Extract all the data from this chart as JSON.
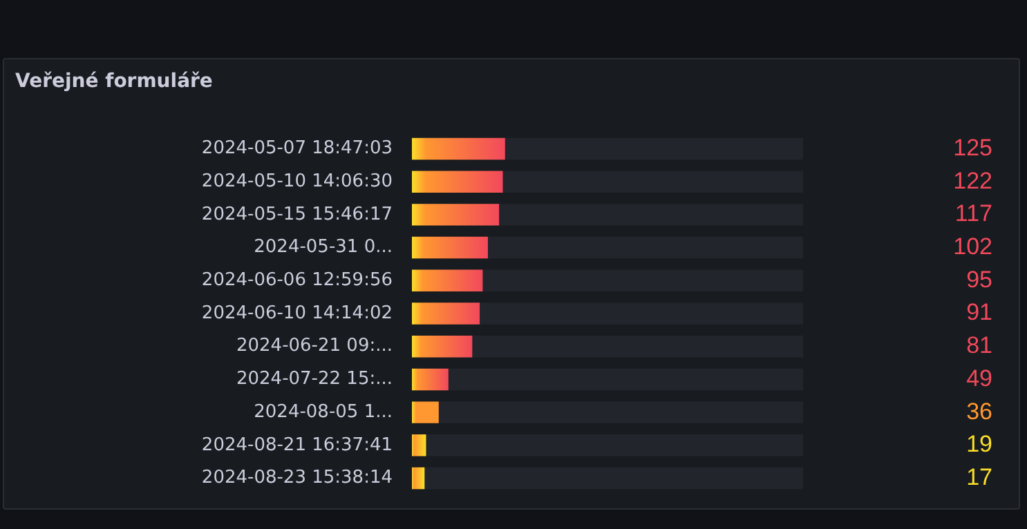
{
  "chart_data": {
    "type": "bar",
    "orientation": "horizontal",
    "title": "Veřejné formuláře",
    "categories": [
      "2024-05-07 18:47:03",
      "2024-05-10 14:06:30",
      "2024-05-15 15:46:17",
      "2024-05-31 0...",
      "2024-06-06 12:59:56",
      "2024-06-10 14:14:02",
      "2024-06-21 09:...",
      "2024-07-22 15:...",
      "2024-08-05 1...",
      "2024-08-21 16:37:41",
      "2024-08-23 15:38:14"
    ],
    "values": [
      125,
      122,
      117,
      102,
      95,
      91,
      81,
      49,
      36,
      19,
      17
    ],
    "colors": [
      "#f2495c",
      "#f2495c",
      "#f2495c",
      "#f2495c",
      "#f2495c",
      "#f2495c",
      "#f2495c",
      "#f2495c",
      "#ff9830",
      "#fade2a",
      "#fade2a"
    ],
    "data_labels": true
  }
}
